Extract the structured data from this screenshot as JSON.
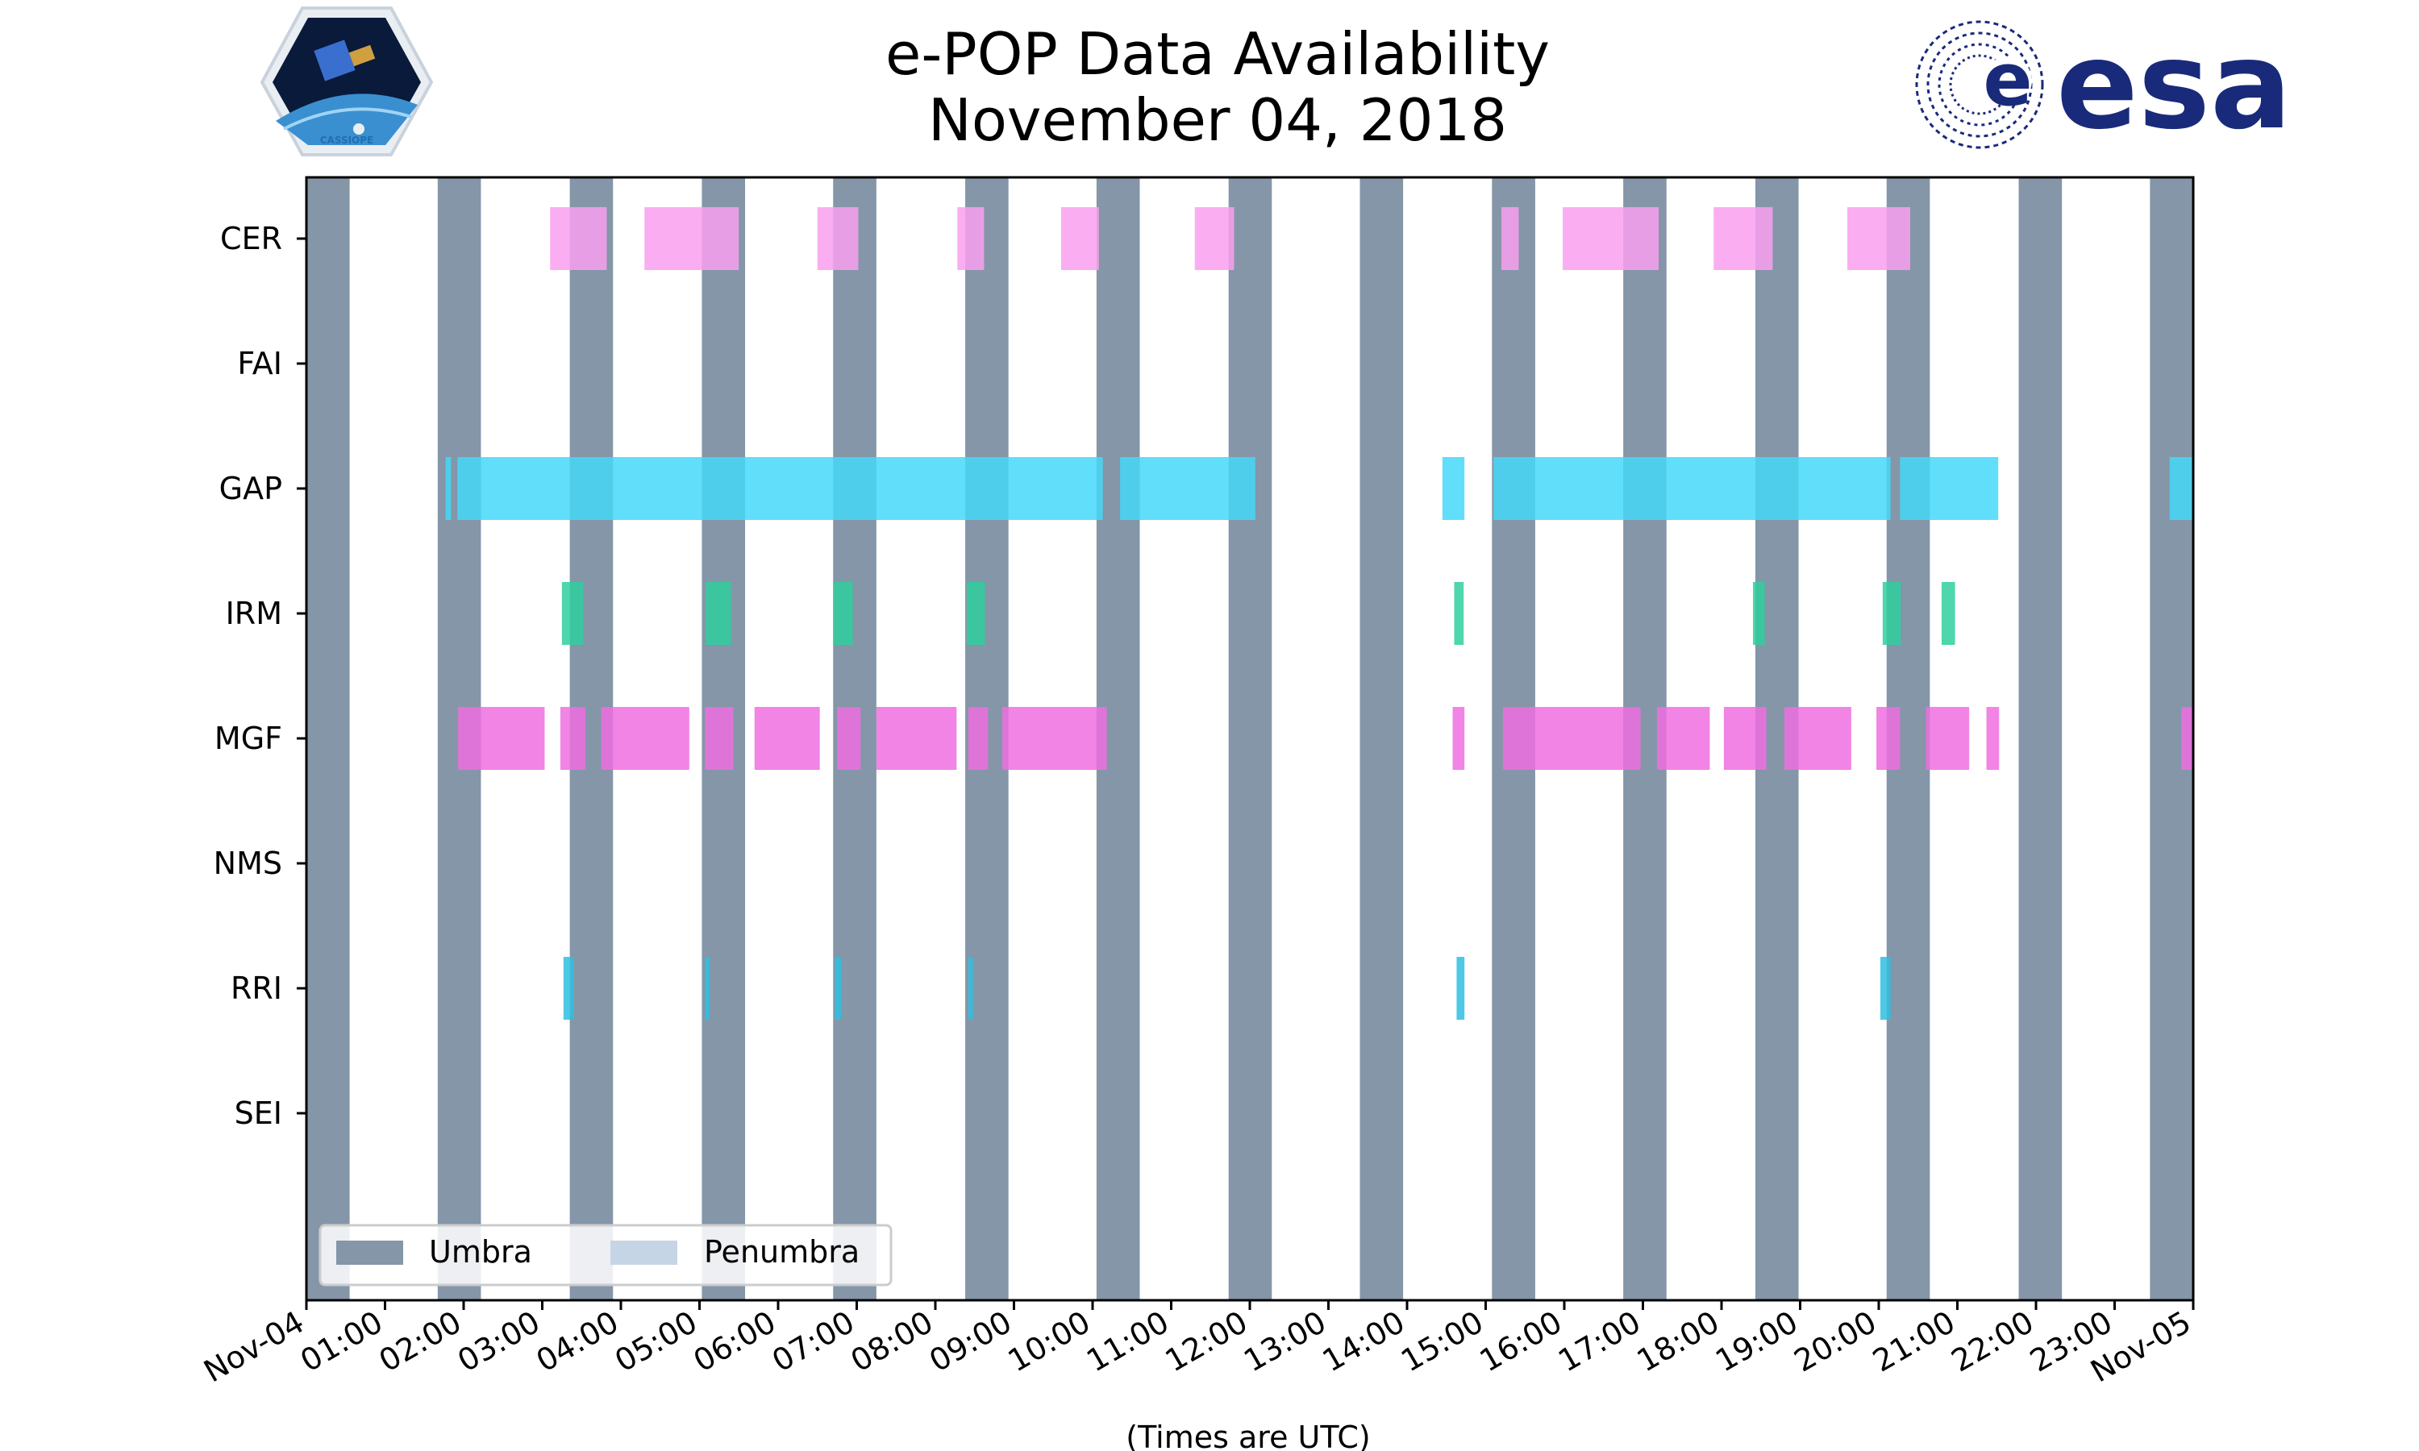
{
  "header": {
    "title_line1": "e-POP Data Availability",
    "title_line2": "November 04, 2018",
    "left_logo_text": "CASSIOPE",
    "right_logo_text": "esa"
  },
  "colors": {
    "umbra": "#8496a8",
    "penumbra": "#c5d5e6",
    "CER": "#f9a0ee",
    "GAP": "#45d8f8",
    "IRM": "#2fcf9f",
    "MGF": "#ee6ee0",
    "RRI": "#2fbfe0",
    "esa_blue": "#1a2a7a"
  },
  "chart_data": {
    "type": "timeline",
    "title": "e-POP Data Availability\nNovember 04, 2018",
    "xlabel": "(Times are UTC)",
    "ylabel": "",
    "xlim_hours": [
      0,
      24
    ],
    "x_tick_labels": [
      "Nov-04",
      "01:00",
      "02:00",
      "03:00",
      "04:00",
      "05:00",
      "06:00",
      "07:00",
      "08:00",
      "09:00",
      "10:00",
      "11:00",
      "12:00",
      "13:00",
      "14:00",
      "15:00",
      "16:00",
      "17:00",
      "18:00",
      "19:00",
      "20:00",
      "21:00",
      "22:00",
      "23:00",
      "Nov-05"
    ],
    "instruments": [
      "CER",
      "FAI",
      "GAP",
      "IRM",
      "MGF",
      "NMS",
      "RRI",
      "SEI"
    ],
    "umbra_intervals_hours": [
      [
        0.0,
        0.55
      ],
      [
        1.67,
        2.22
      ],
      [
        3.35,
        3.9
      ],
      [
        5.03,
        5.58
      ],
      [
        6.7,
        7.25
      ],
      [
        8.38,
        8.93
      ],
      [
        10.05,
        10.6
      ],
      [
        11.73,
        12.28
      ],
      [
        13.4,
        13.95
      ],
      [
        15.08,
        15.63
      ],
      [
        16.75,
        17.3
      ],
      [
        18.43,
        18.98
      ],
      [
        20.1,
        20.65
      ],
      [
        21.78,
        22.33
      ],
      [
        23.45,
        24.0
      ]
    ],
    "availability_hours": {
      "CER": [
        [
          3.1,
          3.82
        ],
        [
          4.3,
          5.5
        ],
        [
          6.5,
          7.02
        ],
        [
          8.28,
          8.62
        ],
        [
          9.6,
          10.08
        ],
        [
          11.3,
          11.8
        ],
        [
          15.2,
          15.42
        ],
        [
          15.98,
          17.2
        ],
        [
          17.9,
          18.65
        ],
        [
          19.6,
          20.4
        ]
      ],
      "FAI": [],
      "GAP": [
        [
          1.77,
          1.84
        ],
        [
          1.92,
          10.13
        ],
        [
          10.35,
          12.07
        ],
        [
          14.45,
          14.73
        ],
        [
          15.1,
          20.15
        ],
        [
          20.27,
          21.52
        ],
        [
          23.7,
          24.0
        ]
      ],
      "IRM": [
        [
          3.25,
          3.52
        ],
        [
          5.08,
          5.4
        ],
        [
          6.7,
          6.95
        ],
        [
          8.4,
          8.63
        ],
        [
          14.6,
          14.72
        ],
        [
          18.4,
          18.55
        ],
        [
          20.05,
          20.28
        ],
        [
          20.8,
          20.97
        ]
      ],
      "MGF": [
        [
          1.93,
          3.03
        ],
        [
          3.23,
          3.55
        ],
        [
          3.75,
          4.87
        ],
        [
          5.07,
          5.43
        ],
        [
          5.7,
          6.53
        ],
        [
          6.75,
          7.05
        ],
        [
          7.25,
          8.27
        ],
        [
          8.42,
          8.67
        ],
        [
          8.85,
          10.18
        ],
        [
          14.58,
          14.73
        ],
        [
          15.22,
          16.97
        ],
        [
          17.18,
          17.85
        ],
        [
          18.03,
          18.57
        ],
        [
          18.8,
          19.65
        ],
        [
          19.97,
          20.27
        ],
        [
          20.6,
          21.15
        ],
        [
          21.37,
          21.53
        ],
        [
          23.85,
          24.0
        ]
      ],
      "NMS": [],
      "RRI": [
        [
          3.27,
          3.4
        ],
        [
          5.07,
          5.13
        ],
        [
          6.72,
          6.8
        ],
        [
          8.42,
          8.48
        ],
        [
          14.63,
          14.73
        ],
        [
          20.02,
          20.15
        ]
      ],
      "SEI": []
    },
    "legend": {
      "placement": "lower-left",
      "entries": [
        "Umbra",
        "Penumbra"
      ]
    }
  }
}
